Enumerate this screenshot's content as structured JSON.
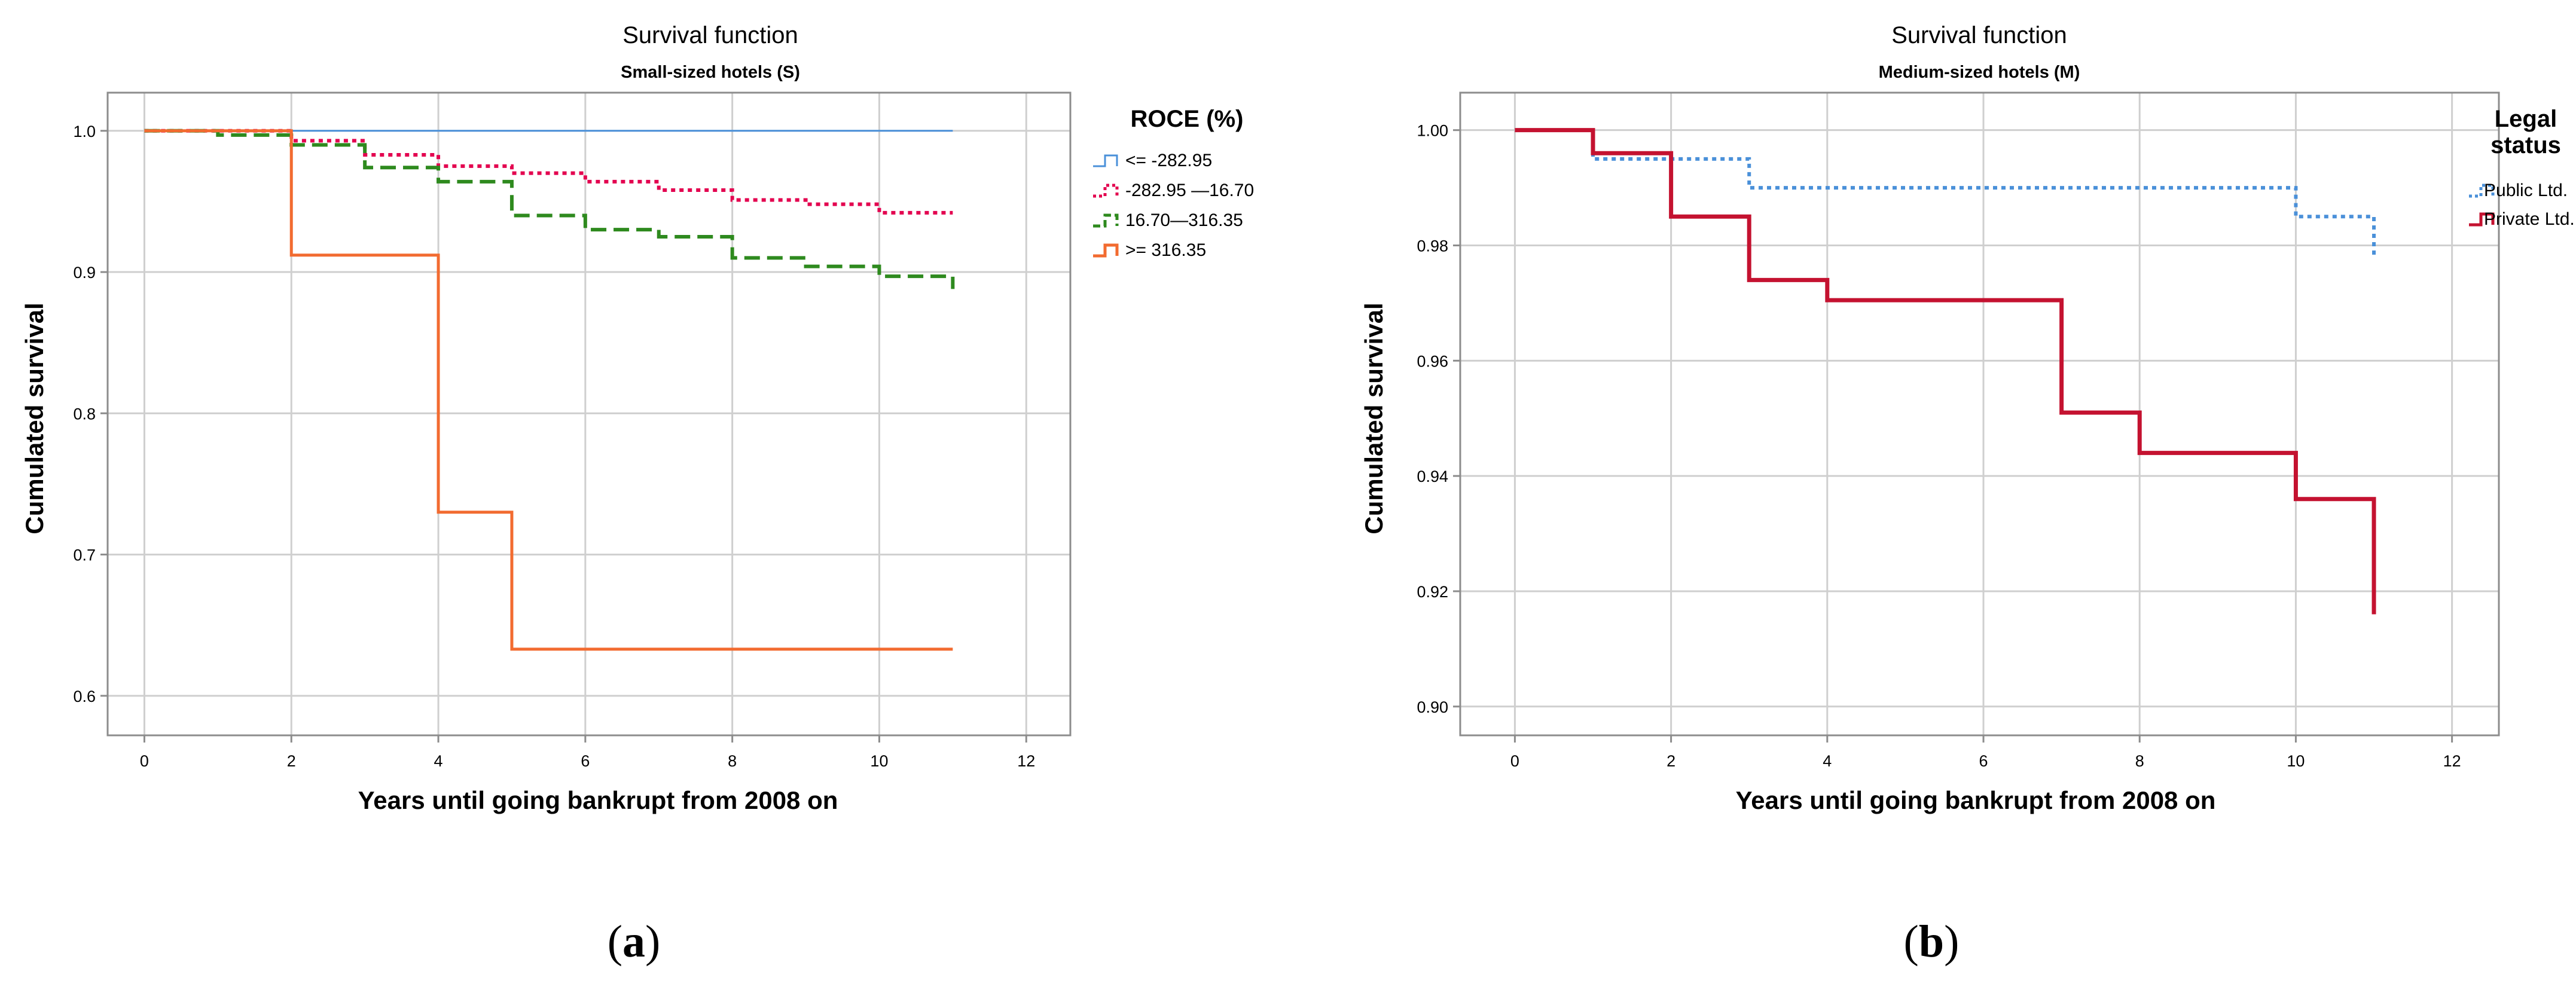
{
  "chart_data": [
    {
      "type": "line",
      "panel_label": "a",
      "title": "Survival function",
      "subtitle": "Small-sized hotels (S)",
      "xlabel": "Years until going bankrupt from 2008 on",
      "ylabel": "Cumulated survival",
      "xlim": [
        -0.5,
        12.6
      ],
      "ylim": [
        0.572,
        1.027
      ],
      "xticks": [
        0,
        2,
        4,
        6,
        8,
        10,
        12
      ],
      "yticks": [
        0.6,
        0.7,
        0.8,
        0.9,
        1.0
      ],
      "ytick_labels": [
        "0.6",
        "0.7",
        "0.8",
        "0.9",
        "1.0"
      ],
      "grid": true,
      "legend_title": "ROCE (%)",
      "legend_position": "right",
      "series": [
        {
          "name": "<= -282.95",
          "color": "#4a90d9",
          "style": "solid",
          "width": 3,
          "x": [
            0,
            11
          ],
          "y": [
            1.0,
            1.0
          ]
        },
        {
          "name": "-282.95 —16.70",
          "color": "#e3004f",
          "style": "dotted",
          "width": 6,
          "x": [
            0,
            2,
            3,
            4,
            5,
            6,
            7,
            8,
            9,
            10,
            11
          ],
          "y": [
            1.0,
            0.993,
            0.983,
            0.975,
            0.97,
            0.964,
            0.958,
            0.951,
            0.948,
            0.942,
            0.942
          ]
        },
        {
          "name": "16.70—316.35",
          "color": "#2e8a1e",
          "style": "dashed",
          "width": 6,
          "x": [
            0,
            1,
            2,
            3,
            4,
            5,
            6,
            7,
            8,
            9,
            10,
            11
          ],
          "y": [
            1.0,
            0.997,
            0.99,
            0.974,
            0.964,
            0.94,
            0.93,
            0.925,
            0.91,
            0.904,
            0.897,
            0.888
          ]
        },
        {
          "name": ">= 316.35",
          "color": "#f26b30",
          "style": "solid",
          "width": 5,
          "x": [
            0,
            2,
            4,
            5,
            11
          ],
          "y": [
            1.0,
            0.912,
            0.73,
            0.633,
            0.633
          ]
        }
      ]
    },
    {
      "type": "line",
      "panel_label": "b",
      "title": "Survival function",
      "subtitle": "Medium-sized hotels (M)",
      "xlabel": "Years until going bankrupt from 2008 on",
      "ylabel": "Cumulated survival",
      "xlim": [
        -0.7,
        12.6
      ],
      "ylim": [
        0.895,
        1.0065
      ],
      "xticks": [
        0,
        2,
        4,
        6,
        8,
        10,
        12
      ],
      "yticks": [
        0.9,
        0.92,
        0.94,
        0.96,
        0.98,
        1.0
      ],
      "ytick_labels": [
        "0.90",
        "0.92",
        "0.94",
        "0.96",
        "0.98",
        "1.00"
      ],
      "grid": true,
      "legend_title": "Legal status",
      "legend_position": "right",
      "series": [
        {
          "name": "Public Ltd.",
          "color": "#4a90d9",
          "style": "dotted",
          "width": 6,
          "x": [
            0,
            1,
            3,
            10,
            11
          ],
          "y": [
            1.0,
            0.995,
            0.99,
            0.985,
            0.978
          ]
        },
        {
          "name": "Private Ltd.",
          "color": "#c41230",
          "style": "solid",
          "width": 7,
          "x": [
            0,
            1,
            2,
            3,
            4,
            7,
            8,
            10,
            11
          ],
          "y": [
            1.0,
            0.996,
            0.985,
            0.974,
            0.9705,
            0.951,
            0.944,
            0.936,
            0.916
          ]
        }
      ]
    }
  ]
}
